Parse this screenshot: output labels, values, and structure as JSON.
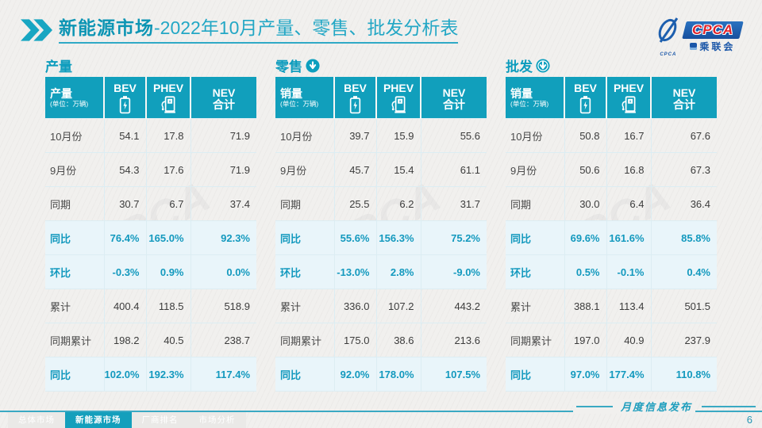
{
  "header": {
    "title_primary": "新能源市场",
    "title_secondary": "-2022年10月产量、零售、批发分析表",
    "logo": {
      "swoosh_caption": "CPCA",
      "cpca_text": "CPCA",
      "cn_text": "乘联会"
    }
  },
  "watermark": "CPCA",
  "tables": [
    {
      "id": "production",
      "section_title": "产量",
      "arrow": null,
      "unit_label": "产量",
      "unit_note": "(单位：万辆)",
      "columns": [
        {
          "label": "BEV",
          "icon": "battery-icon"
        },
        {
          "label": "PHEV",
          "icon": "charging-station-icon"
        },
        {
          "label": "NEV",
          "sublabel": "合计"
        }
      ],
      "rows": [
        {
          "label": "10月份",
          "type": "normal",
          "values": [
            "54.1",
            "17.8",
            "71.9"
          ]
        },
        {
          "label": "9月份",
          "type": "normal",
          "values": [
            "54.3",
            "17.6",
            "71.9"
          ]
        },
        {
          "label": "同期",
          "type": "normal",
          "values": [
            "30.7",
            "6.7",
            "37.4"
          ]
        },
        {
          "label": "同比",
          "type": "ratio",
          "values": [
            "76.4%",
            "165.0%",
            "92.3%"
          ]
        },
        {
          "label": "环比",
          "type": "ratio",
          "values": [
            "-0.3%",
            "0.9%",
            "0.0%"
          ]
        },
        {
          "label": "累计",
          "type": "normal",
          "values": [
            "400.4",
            "118.5",
            "518.9"
          ]
        },
        {
          "label": "同期累计",
          "type": "normal",
          "values": [
            "198.2",
            "40.5",
            "238.7"
          ]
        },
        {
          "label": "同比",
          "type": "ratio",
          "values": [
            "102.0%",
            "192.3%",
            "117.4%"
          ]
        }
      ]
    },
    {
      "id": "retail",
      "section_title": "零售",
      "arrow": "solid",
      "unit_label": "销量",
      "unit_note": "(单位：万辆)",
      "columns": [
        {
          "label": "BEV",
          "icon": "battery-icon"
        },
        {
          "label": "PHEV",
          "icon": "charging-station-icon"
        },
        {
          "label": "NEV",
          "sublabel": "合计"
        }
      ],
      "rows": [
        {
          "label": "10月份",
          "type": "normal",
          "values": [
            "39.7",
            "15.9",
            "55.6"
          ]
        },
        {
          "label": "9月份",
          "type": "normal",
          "values": [
            "45.7",
            "15.4",
            "61.1"
          ]
        },
        {
          "label": "同期",
          "type": "normal",
          "values": [
            "25.5",
            "6.2",
            "31.7"
          ]
        },
        {
          "label": "同比",
          "type": "ratio",
          "values": [
            "55.6%",
            "156.3%",
            "75.2%"
          ]
        },
        {
          "label": "环比",
          "type": "ratio",
          "values": [
            "-13.0%",
            "2.8%",
            "-9.0%"
          ]
        },
        {
          "label": "累计",
          "type": "normal",
          "values": [
            "336.0",
            "107.2",
            "443.2"
          ]
        },
        {
          "label": "同期累计",
          "type": "normal",
          "values": [
            "175.0",
            "38.6",
            "213.6"
          ]
        },
        {
          "label": "同比",
          "type": "ratio",
          "values": [
            "92.0%",
            "178.0%",
            "107.5%"
          ]
        }
      ]
    },
    {
      "id": "wholesale",
      "section_title": "批发",
      "arrow": "ring",
      "unit_label": "销量",
      "unit_note": "(单位：万辆)",
      "columns": [
        {
          "label": "BEV",
          "icon": "battery-icon"
        },
        {
          "label": "PHEV",
          "icon": "charging-station-icon"
        },
        {
          "label": "NEV",
          "sublabel": "合计"
        }
      ],
      "rows": [
        {
          "label": "10月份",
          "type": "normal",
          "values": [
            "50.8",
            "16.7",
            "67.6"
          ]
        },
        {
          "label": "9月份",
          "type": "normal",
          "values": [
            "50.6",
            "16.8",
            "67.3"
          ]
        },
        {
          "label": "同期",
          "type": "normal",
          "values": [
            "30.0",
            "6.4",
            "36.4"
          ]
        },
        {
          "label": "同比",
          "type": "ratio",
          "values": [
            "69.6%",
            "161.6%",
            "85.8%"
          ]
        },
        {
          "label": "环比",
          "type": "ratio",
          "values": [
            "0.5%",
            "-0.1%",
            "0.4%"
          ]
        },
        {
          "label": "累计",
          "type": "normal",
          "values": [
            "388.1",
            "113.4",
            "501.5"
          ]
        },
        {
          "label": "同期累计",
          "type": "normal",
          "values": [
            "197.0",
            "40.9",
            "237.9"
          ]
        },
        {
          "label": "同比",
          "type": "ratio",
          "values": [
            "97.0%",
            "177.4%",
            "110.8%"
          ]
        }
      ]
    }
  ],
  "footer": {
    "tabs": [
      {
        "label": "总体市场",
        "active": false
      },
      {
        "label": "新能源市场",
        "active": true
      },
      {
        "label": "厂商排名",
        "active": false
      },
      {
        "label": "市场分析",
        "active": false
      }
    ],
    "caption": "月度信息发布",
    "page_number": "6"
  },
  "colors": {
    "accent_teal": "#119fbc",
    "ratio_row_bg": "#e9f5fa",
    "ratio_text": "#1399be",
    "logo_blue": "#1a56a8",
    "logo_red": "#e02028",
    "slide_bg": "#f1f0ee"
  }
}
